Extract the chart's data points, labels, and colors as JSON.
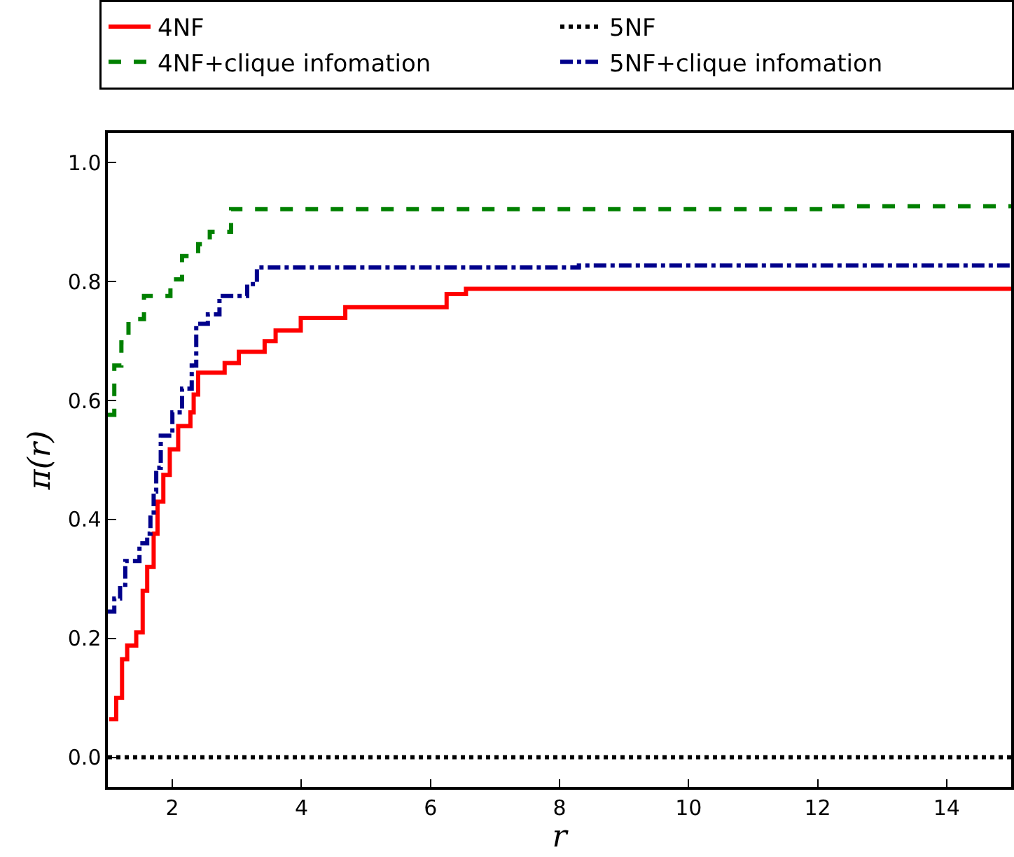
{
  "chart_data": {
    "type": "step",
    "xlabel": "r",
    "ylabel": "π(r)",
    "series": [
      {
        "name": "4NF",
        "color": "#ff0000",
        "line_style": "solid",
        "x": [
          1.02,
          1.13,
          1.22,
          1.3,
          1.44,
          1.54,
          1.61,
          1.71,
          1.77,
          1.86,
          1.96,
          2.09,
          2.28,
          2.33,
          2.4,
          2.81,
          3.03,
          3.43,
          3.6,
          3.99,
          4.68,
          6.25,
          6.55,
          15
        ],
        "values": [
          0.064,
          0.1,
          0.165,
          0.188,
          0.21,
          0.28,
          0.32,
          0.376,
          0.43,
          0.475,
          0.518,
          0.557,
          0.58,
          0.61,
          0.647,
          0.663,
          0.682,
          0.7,
          0.718,
          0.739,
          0.757,
          0.779,
          0.788,
          0.788
        ]
      },
      {
        "name": "5NF",
        "color": "#000000",
        "line_style": "dotted",
        "x": [
          1,
          15
        ],
        "values": [
          0,
          0
        ]
      },
      {
        "name": "4NF+clique infomation",
        "color": "#008000",
        "line_style": "dashed",
        "x": [
          1,
          1.1,
          1.21,
          1.32,
          1.56,
          1.97,
          2.15,
          2.4,
          2.58,
          2.91,
          12.2,
          15
        ],
        "values": [
          0.576,
          0.659,
          0.698,
          0.737,
          0.776,
          0.804,
          0.843,
          0.863,
          0.884,
          0.922,
          0.927,
          0.927
        ]
      },
      {
        "name": "5NF+clique infomation",
        "color": "#00008b",
        "line_style": "dashdot",
        "x": [
          1,
          1.1,
          1.19,
          1.27,
          1.49,
          1.61,
          1.66,
          1.71,
          1.75,
          1.82,
          2.0,
          2.15,
          2.3,
          2.37,
          2.55,
          2.73,
          3.16,
          3.31,
          8.3,
          15
        ],
        "values": [
          0.245,
          0.267,
          0.29,
          0.33,
          0.36,
          0.376,
          0.408,
          0.447,
          0.487,
          0.541,
          0.58,
          0.62,
          0.659,
          0.729,
          0.745,
          0.776,
          0.796,
          0.824,
          0.827,
          0.827
        ]
      }
    ],
    "xlim": [
      1,
      15
    ],
    "xticks": [
      2,
      4,
      6,
      8,
      10,
      12,
      14
    ],
    "ylim": [
      -0.05,
      1.05
    ],
    "yticks": [
      {
        "value": 0,
        "label": "0.0"
      },
      {
        "value": 0.2,
        "label": "0.2"
      },
      {
        "value": 0.4,
        "label": "0.4"
      },
      {
        "value": 0.6,
        "label": "0.6"
      },
      {
        "value": 0.8,
        "label": "0.8"
      },
      {
        "value": 1.0,
        "label": "1.0"
      }
    ],
    "legend": "top",
    "marker": "none"
  }
}
